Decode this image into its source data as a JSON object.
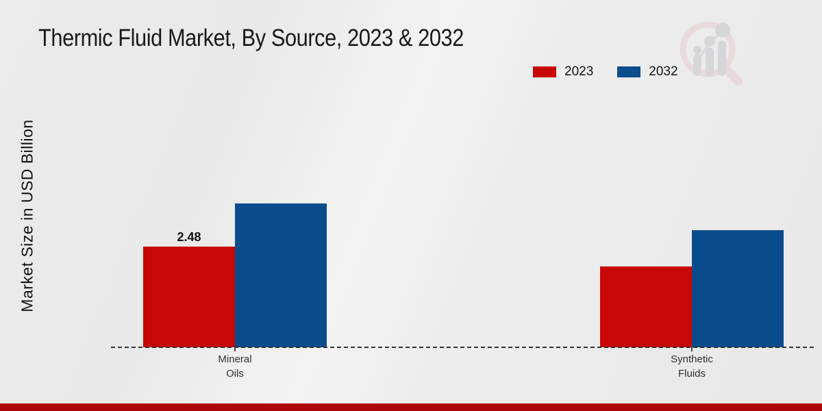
{
  "chart_data": {
    "type": "bar",
    "title": "Thermic Fluid Market, By Source, 2023 & 2032",
    "ylabel": "Market Size in USD Billion",
    "xlabel": "",
    "categories": [
      "Mineral\nOils",
      "Synthetic\nFluids"
    ],
    "series": [
      {
        "name": "2023",
        "color": "#c80808",
        "values": [
          2.48,
          1.99
        ]
      },
      {
        "name": "2032",
        "color": "#0b4d8c",
        "values": [
          3.54,
          2.88
        ]
      }
    ],
    "data_labels": [
      {
        "series_index": 0,
        "category_index": 0,
        "text": "2.48"
      }
    ],
    "ylim": [
      0,
      4.2
    ],
    "y_axis_ticks_visible": false,
    "grid": false,
    "legend_position": "top-right",
    "baseline_style": "dashed"
  },
  "branding": {
    "watermark_icon": "magnifier-bar-chart-logo",
    "accent_bar_color": "#ad0808",
    "watermark_ring_color": "#e7cdd1",
    "watermark_bar_color": "#c6c6cc"
  }
}
